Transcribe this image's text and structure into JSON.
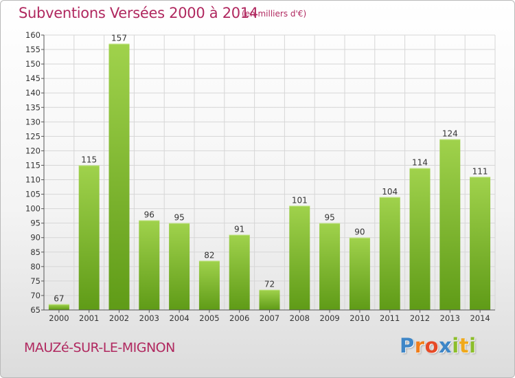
{
  "header": {
    "title": "Subventions Versées 2000 à 2014",
    "unit_note": "(en milliers d'€)"
  },
  "footer": {
    "commune": "MAUZé-SUR-LE-MIGNON",
    "logo": [
      "P",
      "r",
      "o",
      "x",
      "i",
      "t",
      "i"
    ]
  },
  "colors": {
    "accent": "#b0285f",
    "bar_top": "#a0d24c",
    "bar_bottom": "#5f9b17",
    "grid": "#d6d6d6",
    "axis": "#555555",
    "text": "#333333"
  },
  "chart_data": {
    "type": "bar",
    "title": "Subventions Versées 2000 à 2014",
    "subtitle": "(en milliers d'€)",
    "xlabel": "",
    "ylabel": "",
    "categories": [
      "2000",
      "2001",
      "2002",
      "2003",
      "2004",
      "2005",
      "2006",
      "2007",
      "2008",
      "2009",
      "2010",
      "2011",
      "2012",
      "2013",
      "2014"
    ],
    "values": [
      67,
      115,
      157,
      96,
      95,
      82,
      91,
      72,
      101,
      95,
      90,
      104,
      114,
      124,
      111
    ],
    "data_labels": [
      "67",
      "115",
      "157",
      "96",
      "95",
      "82",
      "91",
      "72",
      "101",
      "95",
      "90",
      "104",
      "114",
      "124",
      "111"
    ],
    "ylim": [
      65,
      160
    ],
    "ytick_step": 5,
    "yticks": [
      "65",
      "70",
      "75",
      "80",
      "85",
      "90",
      "95",
      "100",
      "105",
      "110",
      "115",
      "120",
      "125",
      "130",
      "135",
      "140",
      "145",
      "150",
      "155",
      "160"
    ],
    "grid": true,
    "legend": "none"
  }
}
